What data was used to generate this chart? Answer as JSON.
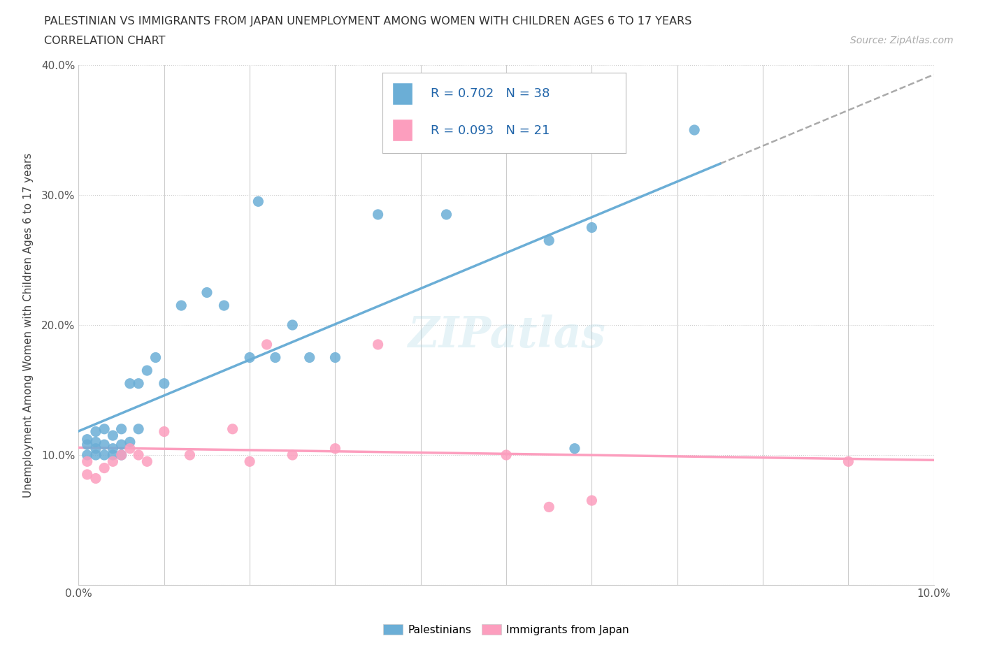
{
  "title_line1": "PALESTINIAN VS IMMIGRANTS FROM JAPAN UNEMPLOYMENT AMONG WOMEN WITH CHILDREN AGES 6 TO 17 YEARS",
  "title_line2": "CORRELATION CHART",
  "source": "Source: ZipAtlas.com",
  "ylabel": "Unemployment Among Women with Children Ages 6 to 17 years",
  "xlim": [
    0.0,
    0.1
  ],
  "ylim": [
    0.0,
    0.4
  ],
  "xticks": [
    0.0,
    0.01,
    0.02,
    0.03,
    0.04,
    0.05,
    0.06,
    0.07,
    0.08,
    0.09,
    0.1
  ],
  "xticklabels": [
    "0.0%",
    "",
    "",
    "",
    "",
    "",
    "",
    "",
    "",
    "",
    "10.0%"
  ],
  "yticks": [
    0.0,
    0.1,
    0.2,
    0.3,
    0.4
  ],
  "yticklabels": [
    "",
    "10.0%",
    "20.0%",
    "30.0%",
    "40.0%"
  ],
  "palestinian_color": "#6baed6",
  "japan_color": "#fc9ebe",
  "R_palestinian": 0.702,
  "N_palestinian": 38,
  "R_japan": 0.093,
  "N_japan": 21,
  "legend_label_1": "Palestinians",
  "legend_label_2": "Immigrants from Japan",
  "watermark": "ZIPatlas",
  "palestinian_x": [
    0.001,
    0.001,
    0.001,
    0.002,
    0.002,
    0.002,
    0.002,
    0.003,
    0.003,
    0.003,
    0.004,
    0.004,
    0.004,
    0.005,
    0.005,
    0.005,
    0.006,
    0.006,
    0.007,
    0.007,
    0.008,
    0.009,
    0.01,
    0.012,
    0.015,
    0.017,
    0.02,
    0.021,
    0.023,
    0.025,
    0.027,
    0.03,
    0.035,
    0.043,
    0.055,
    0.058,
    0.06,
    0.072
  ],
  "palestinian_y": [
    0.1,
    0.108,
    0.112,
    0.1,
    0.105,
    0.11,
    0.118,
    0.1,
    0.108,
    0.12,
    0.1,
    0.105,
    0.115,
    0.1,
    0.108,
    0.12,
    0.11,
    0.155,
    0.12,
    0.155,
    0.165,
    0.175,
    0.155,
    0.215,
    0.225,
    0.215,
    0.175,
    0.295,
    0.175,
    0.2,
    0.175,
    0.175,
    0.285,
    0.285,
    0.265,
    0.105,
    0.275,
    0.35
  ],
  "japan_x": [
    0.001,
    0.001,
    0.002,
    0.003,
    0.004,
    0.005,
    0.006,
    0.007,
    0.008,
    0.01,
    0.013,
    0.018,
    0.02,
    0.022,
    0.025,
    0.03,
    0.035,
    0.05,
    0.055,
    0.06,
    0.09
  ],
  "japan_y": [
    0.095,
    0.085,
    0.082,
    0.09,
    0.095,
    0.1,
    0.105,
    0.1,
    0.095,
    0.118,
    0.1,
    0.12,
    0.095,
    0.185,
    0.1,
    0.105,
    0.185,
    0.1,
    0.06,
    0.065,
    0.095
  ]
}
